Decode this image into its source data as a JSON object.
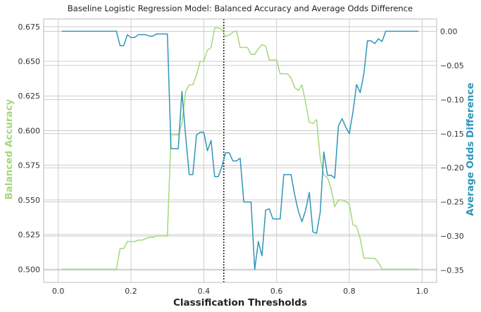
{
  "chart_data": {
    "type": "line",
    "title": "Baseline Logistic Regression Model: Balanced Accuracy and Average Odds Difference",
    "xlabel": "Classification Thresholds",
    "ylabel_left": "Balanced Accuracy",
    "ylabel_right": "Average Odds Difference",
    "xlim": [
      -0.04,
      1.04
    ],
    "ylim_left": [
      0.4905,
      0.6805
    ],
    "ylim_right": [
      -0.368,
      0.018
    ],
    "x_ticks": [
      0.0,
      0.2,
      0.4,
      0.6,
      0.8,
      1.0
    ],
    "x_tick_labels": [
      "0.0",
      "0.2",
      "0.4",
      "0.6",
      "0.8",
      "1.0"
    ],
    "y_left_ticks": [
      0.5,
      0.525,
      0.55,
      0.575,
      0.6,
      0.625,
      0.65,
      0.675
    ],
    "y_left_tick_labels": [
      "0.500",
      "0.525",
      "0.550",
      "0.575",
      "0.600",
      "0.625",
      "0.650",
      "0.675"
    ],
    "y_right_ticks": [
      0.0,
      -0.05,
      -0.1,
      -0.15,
      -0.2,
      -0.25,
      -0.3,
      -0.35
    ],
    "y_right_tick_labels": [
      "0.00",
      "−0.05",
      "−0.10",
      "−0.15",
      "−0.20",
      "−0.25",
      "−0.30",
      "−0.35"
    ],
    "grid": true,
    "vline_x": 0.455,
    "colors": {
      "balanced_accuracy": "#a3d97c",
      "avg_odds_diff": "#2f96b8",
      "vline": "#222222"
    },
    "series": [
      {
        "axis": "left",
        "x": [
          0.01,
          0.05,
          0.1,
          0.15,
          0.16,
          0.17,
          0.18,
          0.19,
          0.2,
          0.21,
          0.22,
          0.23,
          0.24,
          0.25,
          0.26,
          0.27,
          0.28,
          0.29,
          0.3,
          0.31,
          0.32,
          0.33,
          0.34,
          0.35,
          0.36,
          0.37,
          0.38,
          0.39,
          0.4,
          0.41,
          0.42,
          0.43,
          0.44,
          0.45,
          0.46,
          0.47,
          0.48,
          0.49,
          0.5,
          0.51,
          0.52,
          0.53,
          0.54,
          0.55,
          0.56,
          0.57,
          0.58,
          0.59,
          0.6,
          0.61,
          0.62,
          0.63,
          0.64,
          0.65,
          0.66,
          0.67,
          0.68,
          0.69,
          0.7,
          0.71,
          0.72,
          0.73,
          0.74,
          0.75,
          0.76,
          0.77,
          0.78,
          0.79,
          0.8,
          0.81,
          0.82,
          0.83,
          0.84,
          0.85,
          0.86,
          0.87,
          0.88,
          0.89,
          0.9,
          0.95,
          0.99
        ],
        "values": [
          0.5,
          0.5,
          0.5,
          0.5,
          0.5,
          0.515,
          0.515,
          0.52,
          0.52,
          0.52,
          0.521,
          0.521,
          0.522,
          0.523,
          0.523,
          0.524,
          0.524,
          0.524,
          0.524,
          0.597,
          0.597,
          0.597,
          0.605,
          0.628,
          0.633,
          0.633,
          0.64,
          0.65,
          0.65,
          0.658,
          0.66,
          0.674,
          0.674,
          0.673,
          0.668,
          0.669,
          0.671,
          0.672,
          0.66,
          0.66,
          0.66,
          0.655,
          0.655,
          0.659,
          0.662,
          0.661,
          0.651,
          0.651,
          0.651,
          0.641,
          0.641,
          0.641,
          0.638,
          0.631,
          0.629,
          0.633,
          0.62,
          0.606,
          0.605,
          0.608,
          0.58,
          0.568,
          0.566,
          0.558,
          0.545,
          0.55,
          0.55,
          0.549,
          0.547,
          0.532,
          0.531,
          0.522,
          0.508,
          0.508,
          0.508,
          0.508,
          0.505,
          0.5,
          0.5,
          0.5,
          0.5
        ]
      },
      {
        "axis": "right",
        "x": [
          0.01,
          0.05,
          0.1,
          0.15,
          0.16,
          0.17,
          0.18,
          0.19,
          0.2,
          0.21,
          0.22,
          0.23,
          0.24,
          0.25,
          0.26,
          0.27,
          0.28,
          0.29,
          0.3,
          0.31,
          0.32,
          0.33,
          0.34,
          0.35,
          0.36,
          0.37,
          0.38,
          0.39,
          0.4,
          0.41,
          0.42,
          0.43,
          0.44,
          0.45,
          0.46,
          0.47,
          0.48,
          0.49,
          0.5,
          0.51,
          0.52,
          0.53,
          0.54,
          0.55,
          0.56,
          0.57,
          0.58,
          0.59,
          0.6,
          0.61,
          0.62,
          0.63,
          0.64,
          0.65,
          0.66,
          0.67,
          0.68,
          0.69,
          0.7,
          0.71,
          0.72,
          0.73,
          0.74,
          0.75,
          0.76,
          0.77,
          0.78,
          0.79,
          0.8,
          0.81,
          0.82,
          0.83,
          0.84,
          0.85,
          0.86,
          0.87,
          0.88,
          0.89,
          0.9,
          0.95,
          0.99
        ],
        "values": [
          0.0,
          0.0,
          0.0,
          0.0,
          0.0,
          -0.021,
          -0.021,
          -0.005,
          -0.009,
          -0.009,
          -0.005,
          -0.005,
          -0.005,
          -0.007,
          -0.007,
          -0.004,
          -0.004,
          -0.004,
          -0.004,
          -0.172,
          -0.172,
          -0.172,
          -0.088,
          -0.152,
          -0.21,
          -0.21,
          -0.152,
          -0.148,
          -0.148,
          -0.175,
          -0.16,
          -0.213,
          -0.213,
          -0.198,
          -0.178,
          -0.178,
          -0.19,
          -0.19,
          -0.186,
          -0.25,
          -0.25,
          -0.25,
          -0.349,
          -0.308,
          -0.329,
          -0.262,
          -0.26,
          -0.275,
          -0.275,
          -0.275,
          -0.21,
          -0.21,
          -0.21,
          -0.24,
          -0.264,
          -0.279,
          -0.262,
          -0.236,
          -0.294,
          -0.296,
          -0.265,
          -0.177,
          -0.211,
          -0.211,
          -0.215,
          -0.139,
          -0.128,
          -0.14,
          -0.15,
          -0.118,
          -0.078,
          -0.09,
          -0.062,
          -0.014,
          -0.014,
          -0.018,
          -0.011,
          -0.015,
          0.0,
          0.0,
          0.0
        ]
      }
    ]
  }
}
